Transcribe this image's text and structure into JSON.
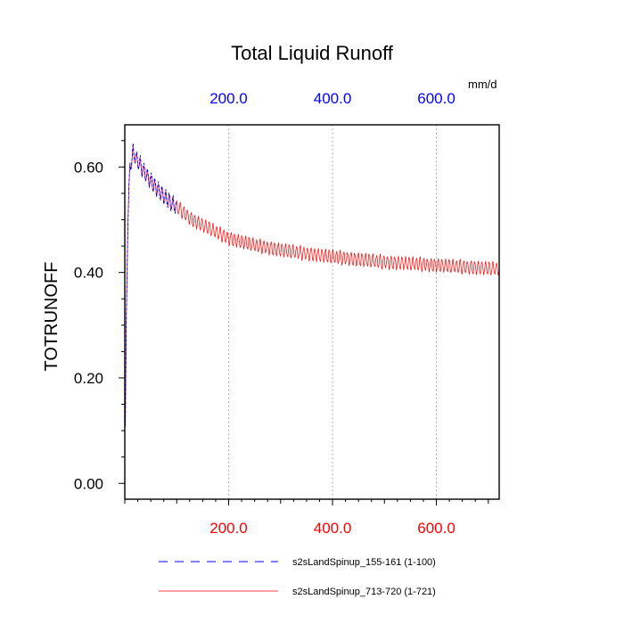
{
  "chart_data": {
    "type": "line",
    "title": "Total Liquid Runoff",
    "ylabel": "TOTRUNOFF",
    "units": "mm/d",
    "xlim": [
      0,
      721
    ],
    "ylim": [
      -0.03,
      0.68
    ],
    "grid": "vertical dotted lines at top-axis ticks",
    "legend_position": "bottom",
    "x_bottom_ticks": [
      {
        "value": 200,
        "label": "200.0"
      },
      {
        "value": 400,
        "label": "400.0"
      },
      {
        "value": 600,
        "label": "600.0"
      }
    ],
    "x_top_ticks": [
      {
        "value": 200,
        "label": "200.0"
      },
      {
        "value": 400,
        "label": "400.0"
      },
      {
        "value": 600,
        "label": "600.0"
      }
    ],
    "y_ticks": [
      {
        "value": 0.0,
        "label": "0.00"
      },
      {
        "value": 0.2,
        "label": "0.20"
      },
      {
        "value": 0.4,
        "label": "0.40"
      },
      {
        "value": 0.6,
        "label": "0.60"
      }
    ],
    "series": [
      {
        "name": "s2sLandSpinup_713-720 (1-721)",
        "color": "#ff0000",
        "style": "solid",
        "x_range": [
          1,
          721
        ],
        "envelope_center": [
          [
            0,
            0.0
          ],
          [
            3,
            0.32
          ],
          [
            6,
            0.5
          ],
          [
            10,
            0.6
          ],
          [
            16,
            0.625
          ],
          [
            25,
            0.61
          ],
          [
            40,
            0.585
          ],
          [
            60,
            0.56
          ],
          [
            80,
            0.54
          ],
          [
            100,
            0.525
          ],
          [
            130,
            0.5
          ],
          [
            160,
            0.485
          ],
          [
            200,
            0.465
          ],
          [
            250,
            0.452
          ],
          [
            300,
            0.443
          ],
          [
            350,
            0.436
          ],
          [
            400,
            0.43
          ],
          [
            450,
            0.425
          ],
          [
            500,
            0.42
          ],
          [
            550,
            0.417
          ],
          [
            600,
            0.414
          ],
          [
            650,
            0.411
          ],
          [
            700,
            0.408
          ],
          [
            721,
            0.407
          ]
        ],
        "oscillation_amplitude": 0.012,
        "oscillation_period": 7
      },
      {
        "name": "s2sLandSpinup_155-161 (1-100)",
        "color": "#0000ff",
        "style": "dashed",
        "x_range": [
          1,
          100
        ],
        "envelope_center": [
          [
            0,
            0.0
          ],
          [
            3,
            0.32
          ],
          [
            6,
            0.5
          ],
          [
            10,
            0.6
          ],
          [
            16,
            0.628
          ],
          [
            25,
            0.612
          ],
          [
            40,
            0.588
          ],
          [
            60,
            0.562
          ],
          [
            80,
            0.54
          ],
          [
            100,
            0.523
          ]
        ],
        "oscillation_amplitude": 0.015,
        "oscillation_period": 7
      }
    ]
  }
}
